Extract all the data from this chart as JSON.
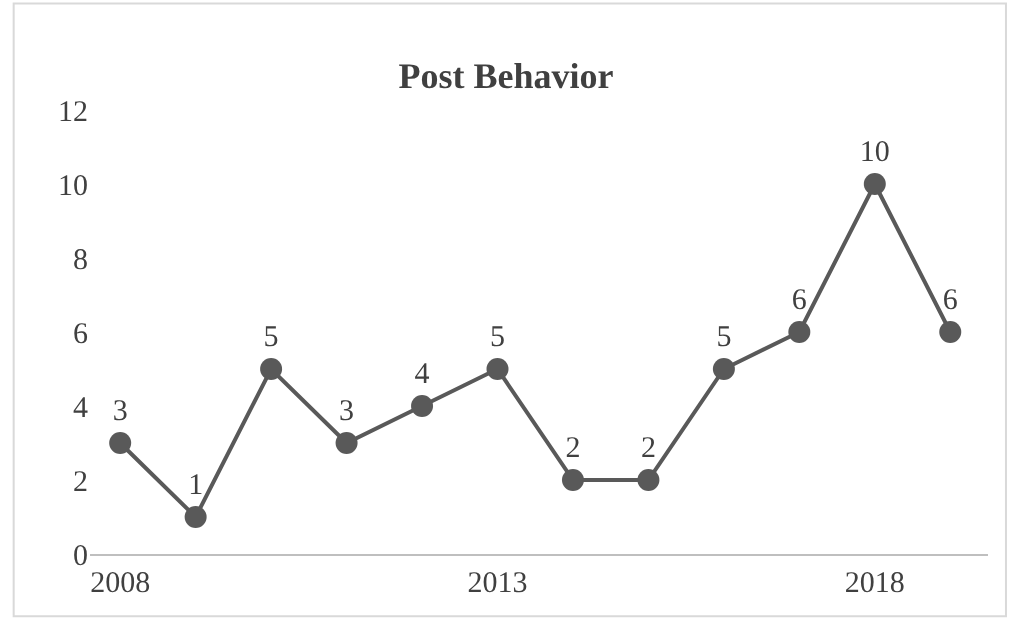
{
  "chart_data": {
    "type": "line",
    "title": "Post Behavior",
    "x": [
      2008,
      2009,
      2010,
      2011,
      2012,
      2013,
      2014,
      2015,
      2016,
      2017,
      2018,
      2019
    ],
    "series": [
      {
        "color": "#595959",
        "values": [
          3,
          1,
          5,
          3,
          4,
          5,
          2,
          2,
          5,
          6,
          10,
          6
        ]
      }
    ],
    "xlim": [
      2007.6,
      2019.5
    ],
    "xticks": [
      2008,
      2013,
      2018
    ],
    "ylim": [
      0,
      12
    ],
    "yticks": [
      0,
      2,
      4,
      6,
      8,
      10,
      12
    ],
    "grid": false,
    "marker": "circle",
    "line_style": "solid",
    "data_labels": true
  }
}
